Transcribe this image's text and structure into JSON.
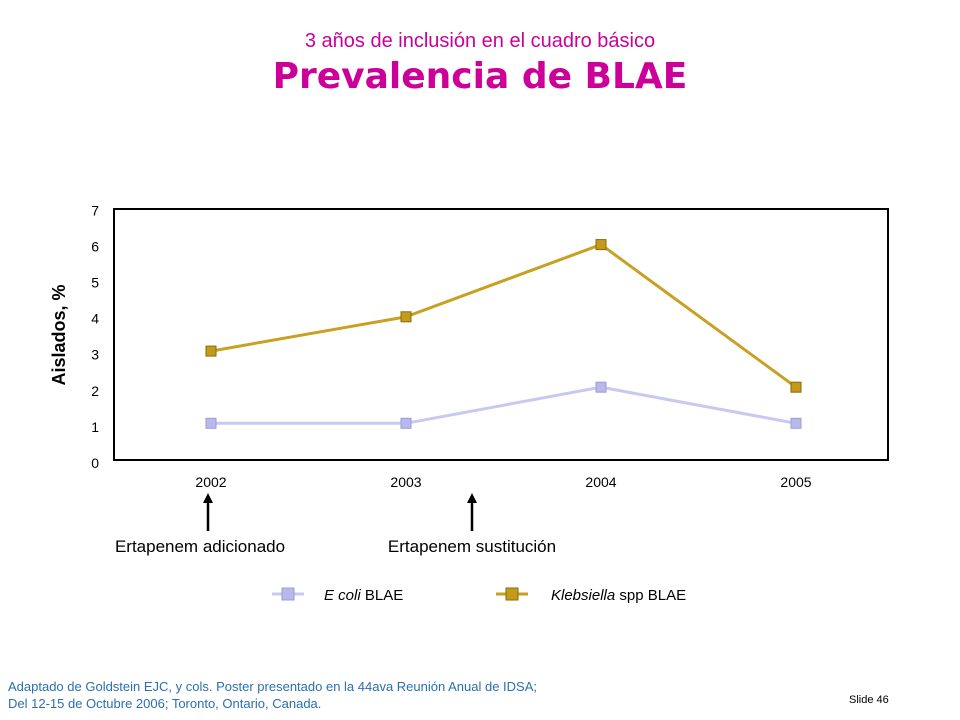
{
  "header": {
    "subtitle": "3 años de inclusión en el cuadro básico",
    "title": "Prevalencia de BLAE"
  },
  "chart_data": {
    "type": "line",
    "x": [
      "2002",
      "2003",
      "2004",
      "2005"
    ],
    "series": [
      {
        "name_italic": "E coli",
        "name_rest": " BLAE",
        "values": [
          1.1,
          1.1,
          2.1,
          1.1
        ],
        "color": "#c8c8f0",
        "marker": "#b8b8ec"
      },
      {
        "name_italic": "Klebsiella",
        "name_rest": " spp BLAE",
        "values": [
          3.1,
          4.05,
          6.05,
          2.1
        ],
        "color": "#c9a021",
        "marker": "#c39a1a"
      }
    ],
    "yticks": [
      "0",
      "1",
      "2",
      "3",
      "4",
      "5",
      "6",
      "7"
    ],
    "ylim": [
      0,
      7
    ],
    "ylabel": "Aislados, %",
    "xlabel": "",
    "grid": false,
    "legend": "bottom",
    "annotations": [
      {
        "text": "Ertapenem adicionado",
        "x": "2002"
      },
      {
        "text": "Ertapenem sustitución",
        "x": "2003-2004"
      }
    ]
  },
  "footer": {
    "source_line1": "Adaptado de Goldstein EJC, y cols.  Poster presentado en la 44ava Reunión Anual de  IDSA;",
    "source_line2": "Del 12-15 de Octubre 2006; Toronto, Ontario, Canada.",
    "slide_number": "Slide 46"
  }
}
